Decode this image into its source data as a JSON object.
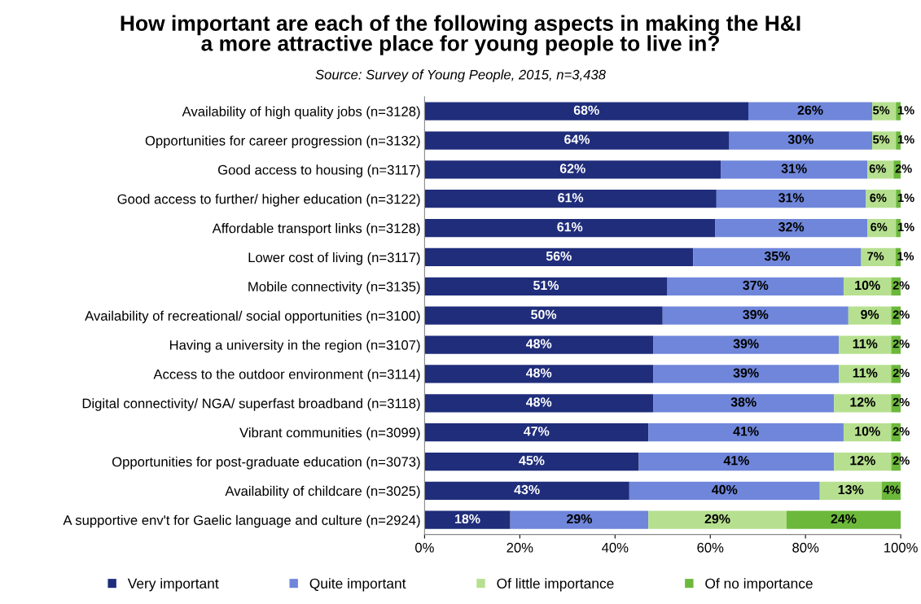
{
  "chart_data": {
    "type": "bar",
    "orientation": "horizontal",
    "stacked": true,
    "title": "How important are each of the following aspects in making the H&I\na more attractive place for young people to live in?",
    "subtitle": "Source: Survey of Young People, 2015, n=3,438",
    "categories": [
      "Availability of high quality jobs (n=3128)",
      "Opportunities for career progression (n=3132)",
      "Good access to housing (n=3117)",
      "Good access to further/ higher education (n=3122)",
      "Affordable transport links (n=3128)",
      "Lower cost of living (n=3117)",
      "Mobile connectivity (n=3135)",
      "Availability of recreational/ social opportunities (n=3100)",
      "Having a university in the region (n=3107)",
      "Access to the outdoor environment (n=3114)",
      "Digital connectivity/ NGA/ superfast broadband (n=3118)",
      "Vibrant communities (n=3099)",
      "Opportunities for post-graduate education (n=3073)",
      "Availability of childcare (n=3025)",
      "A supportive env't for Gaelic language and culture (n=2924)"
    ],
    "series": [
      {
        "name": "Very important",
        "color": "#1f2d7b",
        "values": [
          68,
          64,
          62.2,
          61.3,
          61,
          56.4,
          51,
          50,
          48,
          48,
          48,
          47,
          45,
          43,
          18
        ],
        "value_labels": [
          "68%",
          "64%",
          "62%",
          "61%",
          "61%",
          "56%",
          "51%",
          "50%",
          "48%",
          "48%",
          "48%",
          "47%",
          "45%",
          "43%",
          "18%"
        ]
      },
      {
        "name": "Quite important",
        "color": "#6f86da",
        "values": [
          26,
          30,
          30.8,
          31.4,
          32,
          35.3,
          37,
          39,
          39,
          39,
          38,
          41,
          41,
          40,
          29
        ],
        "value_labels": [
          "26%",
          "30%",
          "31%",
          "31%",
          "32%",
          "35%",
          "37%",
          "39%",
          "39%",
          "39%",
          "38%",
          "41%",
          "41%",
          "40%",
          "29%"
        ]
      },
      {
        "name": "Of little importance",
        "color": "#b6e08f",
        "values": [
          5,
          5,
          5.5,
          6.3,
          6,
          7.2,
          10,
          9,
          11,
          11,
          12,
          10,
          12,
          13,
          29
        ],
        "value_labels": [
          "5%",
          "5%",
          "6%",
          "6%",
          "6%",
          "7%",
          "10%",
          "9%",
          "11%",
          "11%",
          "12%",
          "10%",
          "12%",
          "13%",
          "29%"
        ]
      },
      {
        "name": "Of no importance",
        "color": "#6cb83b",
        "values": [
          1,
          1,
          1.5,
          1.0,
          1,
          1.1,
          2,
          2,
          2,
          2,
          2,
          2,
          2,
          4,
          24
        ],
        "value_labels": [
          "1%",
          "1%",
          "2%",
          "1%",
          "1%",
          "1%",
          "2%",
          "2%",
          "2%",
          "2%",
          "2%",
          "2%",
          "2%",
          "4%",
          "24%"
        ]
      }
    ],
    "xlim": [
      0,
      100
    ],
    "xticks": [
      {
        "value": 0,
        "label": "0%"
      },
      {
        "value": 20,
        "label": "20%"
      },
      {
        "value": 40,
        "label": "40%"
      },
      {
        "value": 60,
        "label": "60%"
      },
      {
        "value": 80,
        "label": "80%"
      },
      {
        "value": 100,
        "label": "100%"
      }
    ],
    "grid": false,
    "legend": "bottom"
  }
}
